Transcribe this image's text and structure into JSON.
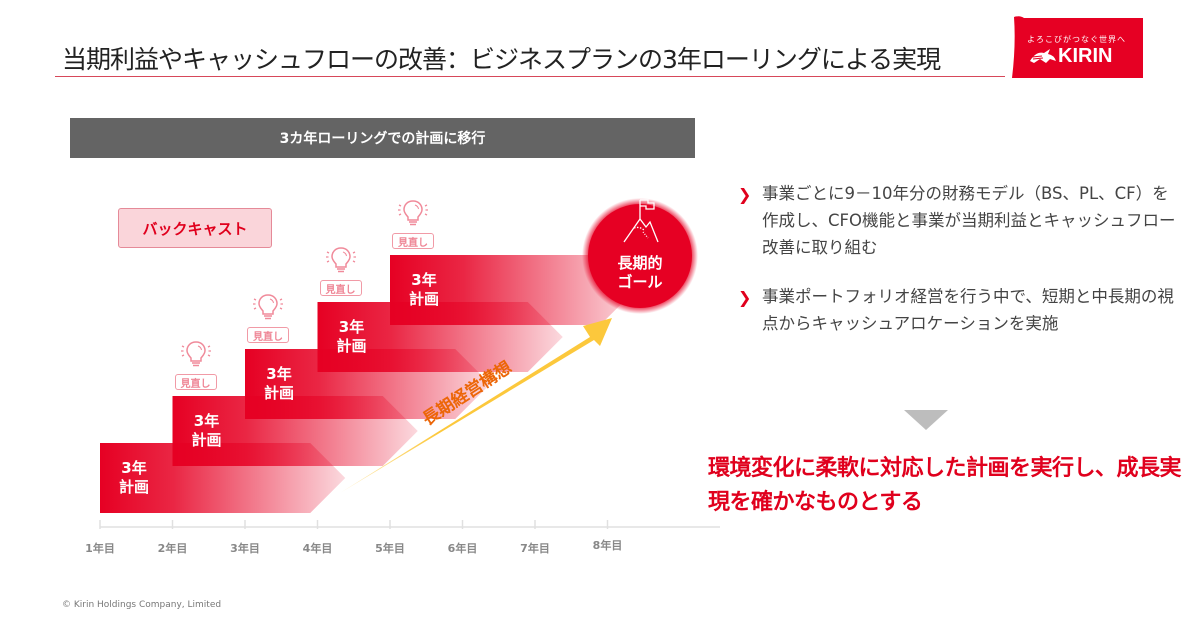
{
  "header": {
    "title": "当期利益やキャッシュフローの改善：ビジネスプランの3年ローリングによる実現",
    "logo": {
      "tagline": "よろこびがつなぐ世界へ",
      "brand": "KIRIN",
      "color": "#e60023"
    }
  },
  "diagram": {
    "banner": "3カ年ローリングでの計画に移行",
    "backcast_label": "バックキャスト",
    "plans": [
      {
        "line1": "3年",
        "line2": "計画",
        "start_year": 1
      },
      {
        "line1": "3年",
        "line2": "計画",
        "start_year": 2
      },
      {
        "line1": "3年",
        "line2": "計画",
        "start_year": 3
      },
      {
        "line1": "3年",
        "line2": "計画",
        "start_year": 4
      },
      {
        "line1": "3年",
        "line2": "計画",
        "start_year": 5
      }
    ],
    "review_label": "見直し",
    "review_count": 4,
    "goal": {
      "line1": "長期的",
      "line2": "ゴール"
    },
    "vision_label": "長期経営構想",
    "axis_labels": [
      "1年目",
      "2年目",
      "3年目",
      "4年目",
      "5年目",
      "6年目",
      "7年目",
      "8年目"
    ],
    "colors": {
      "plan_red": "#e60023",
      "vision_yellow": "#fcc83c",
      "vision_text": "#ec6608",
      "banner_gray": "#646464"
    }
  },
  "points": [
    {
      "text": "事業ごとに9－10年分の財務モデル（BS、PL、CF）を作成し、CFO機能と事業が当期利益とキャッシュフロー改善に取り組む"
    },
    {
      "text": "事業ポートフォリオ経営を行う中で、短期と中長期の視点からキャッシュアロケーションを実施"
    }
  ],
  "conclusion": "環境変化に柔軟に対応した計画を実行し、成長実現を確かなものとする",
  "footer": "© Kirin Holdings Company, Limited"
}
